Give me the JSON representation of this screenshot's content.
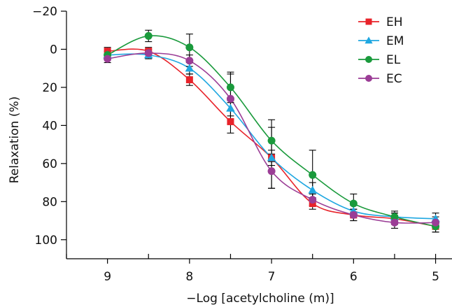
{
  "chart_data": {
    "type": "line",
    "xlabel": "−Log [acetylcholine (m)]",
    "ylabel": "Relaxation (%)",
    "xlim": [
      9.5,
      4.8
    ],
    "ylim": [
      -20,
      110
    ],
    "x_ticks": [
      9,
      8,
      7,
      6,
      5
    ],
    "x_tick_labels": [
      "9",
      "8",
      "7",
      "6",
      "5"
    ],
    "x_minor_ticks": [
      9.5,
      8.5,
      7.5,
      6.5,
      5.5,
      5.0
    ],
    "y_ticks": [
      -20,
      0,
      20,
      40,
      60,
      80,
      100
    ],
    "y_tick_labels": [
      "−20",
      "0",
      "20",
      "40",
      "60",
      "80",
      "100"
    ],
    "y_axis_inverted": true,
    "legend_position": "top-right",
    "x": [
      9,
      8.5,
      8,
      7.5,
      7,
      6.5,
      6,
      5.5,
      5
    ],
    "series": [
      {
        "name": "EH",
        "color": "#e8232a",
        "marker": "square",
        "values": [
          1,
          1,
          16,
          38,
          57,
          81,
          87,
          89,
          93
        ],
        "errors": [
          2,
          2,
          3,
          6,
          16,
          3,
          3,
          3,
          3
        ]
      },
      {
        "name": "EM",
        "color": "#1fa7e1",
        "marker": "triangle",
        "values": [
          3,
          3,
          10,
          31,
          57,
          74,
          85,
          88,
          89
        ],
        "errors": [
          2,
          2,
          3,
          4,
          4,
          4,
          3,
          3,
          3
        ]
      },
      {
        "name": "EL",
        "color": "#1a9a3c",
        "marker": "circle",
        "values": [
          3,
          -7,
          -1,
          20,
          48,
          66,
          81,
          88,
          93
        ],
        "errors": [
          2,
          3,
          7,
          8,
          11,
          13,
          5,
          2,
          3
        ]
      },
      {
        "name": "EC",
        "color": "#9b3d96",
        "marker": "circle",
        "values": [
          5,
          2,
          6,
          26,
          64,
          79,
          87,
          91,
          91
        ],
        "errors": [
          2,
          2,
          3,
          13,
          9,
          3,
          3,
          3,
          3
        ]
      }
    ]
  }
}
